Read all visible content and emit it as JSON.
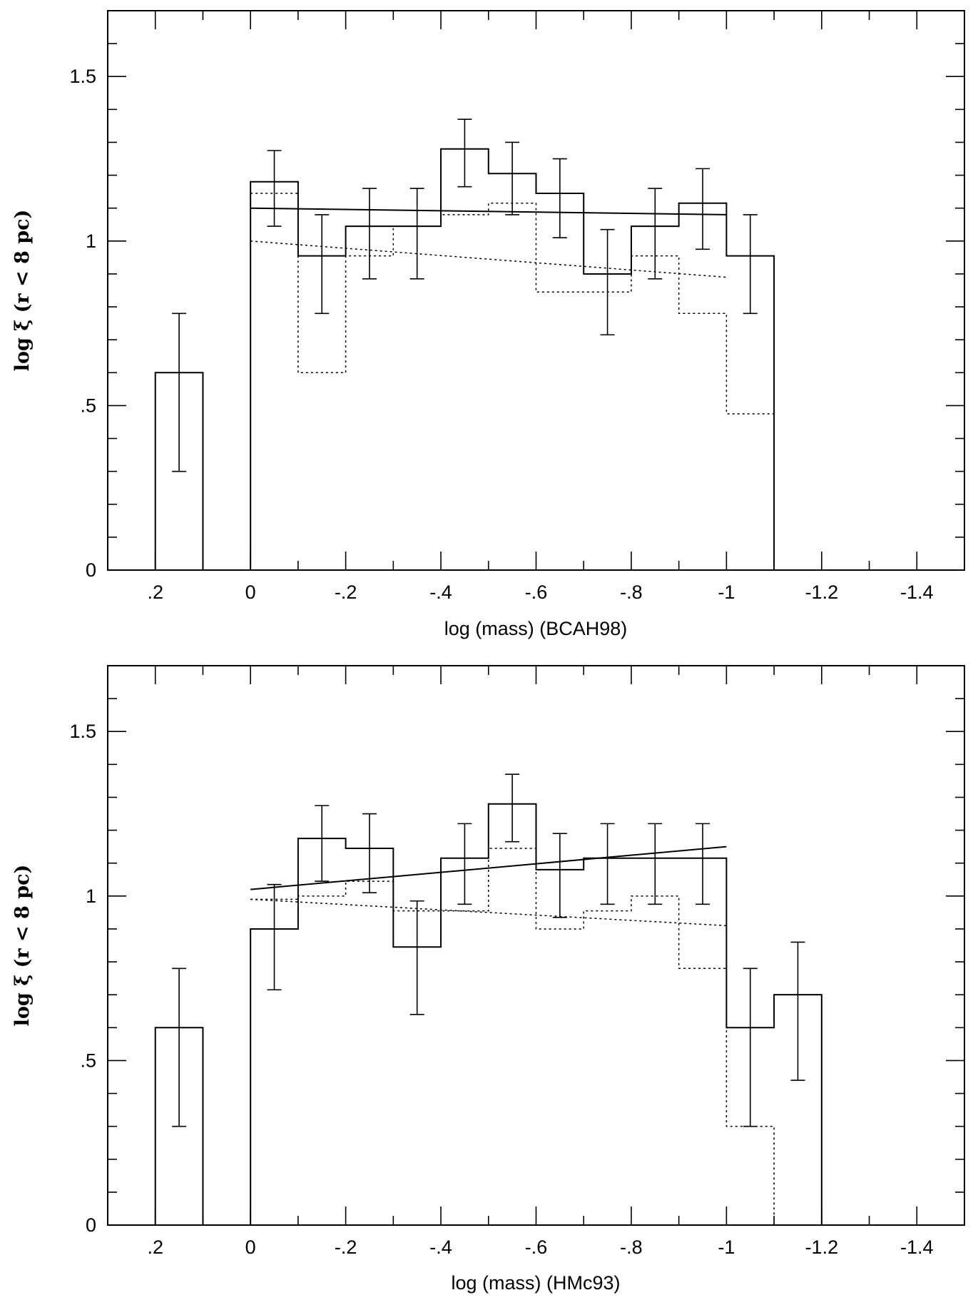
{
  "chart_data": [
    {
      "type": "histogram",
      "xlabel": "log (mass) (BCAH98)",
      "ylabel": "log ξ (r < 8 pc)",
      "xlim": [
        0.3,
        -1.5
      ],
      "ylim": [
        0,
        1.7
      ],
      "x_reversed": true,
      "x_ticks": [
        0.2,
        0,
        -0.2,
        -0.4,
        -0.6,
        -0.8,
        -1,
        -1.2,
        -1.4
      ],
      "x_tick_labels": [
        ".2",
        "0",
        "-.2",
        "-.4",
        "-.6",
        "-.8",
        "-1",
        "-1.2",
        "-1.4"
      ],
      "y_ticks": [
        0,
        0.5,
        1,
        1.5
      ],
      "y_tick_labels": [
        "0",
        ".5",
        "1",
        "1.5"
      ],
      "grid": false,
      "series": [
        {
          "style": "solid histogram with error bars",
          "bin_edges": [
            0.2,
            0.1,
            0,
            -0.1,
            -0.2,
            -0.3,
            -0.4,
            -0.5,
            -0.6,
            -0.7,
            -0.8,
            -0.9,
            -1.0,
            -1.1
          ],
          "values": [
            0.6,
            null,
            1.18,
            0.955,
            1.045,
            1.045,
            1.28,
            1.205,
            1.145,
            0.9,
            1.045,
            1.115,
            0.955
          ],
          "err_low": [
            0.3,
            null,
            1.045,
            0.78,
            0.885,
            0.885,
            1.165,
            1.08,
            1.01,
            0.715,
            0.885,
            0.975,
            0.78
          ],
          "err_high": [
            0.78,
            null,
            1.275,
            1.08,
            1.16,
            1.16,
            1.37,
            1.3,
            1.25,
            1.035,
            1.16,
            1.22,
            1.08
          ]
        },
        {
          "style": "dotted histogram",
          "bin_edges": [
            0,
            -0.1,
            -0.2,
            -0.3,
            -0.4,
            -0.5,
            -0.6,
            -0.7,
            -0.8,
            -0.9,
            -1.0,
            -1.1
          ],
          "values": [
            1.145,
            0.6,
            0.955,
            1.045,
            1.08,
            1.115,
            0.845,
            0.845,
            0.955,
            0.78,
            0.475
          ]
        },
        {
          "style": "solid fit line",
          "x": [
            0,
            -1.0
          ],
          "y": [
            1.1,
            1.08
          ]
        },
        {
          "style": "dotted fit line",
          "x": [
            0,
            -1.0
          ],
          "y": [
            1.0,
            0.89
          ]
        }
      ]
    },
    {
      "type": "histogram",
      "xlabel": "log (mass) (HMc93)",
      "ylabel": "log ξ (r < 8 pc)",
      "xlim": [
        0.3,
        -1.5
      ],
      "ylim": [
        0,
        1.7
      ],
      "x_reversed": true,
      "x_ticks": [
        0.2,
        0,
        -0.2,
        -0.4,
        -0.6,
        -0.8,
        -1,
        -1.2,
        -1.4
      ],
      "x_tick_labels": [
        ".2",
        "0",
        "-.2",
        "-.4",
        "-.6",
        "-.8",
        "-1",
        "-1.2",
        "-1.4"
      ],
      "y_ticks": [
        0,
        0.5,
        1,
        1.5
      ],
      "y_tick_labels": [
        "0",
        ".5",
        "1",
        "1.5"
      ],
      "grid": false,
      "series": [
        {
          "style": "solid histogram with error bars",
          "bin_edges": [
            0.2,
            0.1,
            0,
            -0.1,
            -0.2,
            -0.3,
            -0.4,
            -0.5,
            -0.6,
            -0.7,
            -0.8,
            -0.9,
            -1.0,
            -1.1,
            -1.2
          ],
          "values": [
            0.6,
            null,
            0.9,
            1.175,
            1.145,
            0.845,
            1.115,
            1.28,
            1.08,
            1.115,
            1.115,
            1.115,
            0.6,
            0.7
          ],
          "err_low": [
            0.3,
            null,
            0.715,
            1.045,
            1.01,
            0.64,
            0.975,
            1.165,
            0.935,
            0.975,
            0.975,
            0.975,
            0.3,
            0.44
          ],
          "err_high": [
            0.78,
            null,
            1.035,
            1.275,
            1.25,
            0.985,
            1.22,
            1.37,
            1.19,
            1.22,
            1.22,
            1.22,
            0.78,
            0.86
          ]
        },
        {
          "style": "dotted histogram",
          "bin_edges": [
            0,
            -0.1,
            -0.2,
            -0.3,
            -0.4,
            -0.5,
            -0.6,
            -0.7,
            -0.8,
            -0.9,
            -1.0,
            -1.1
          ],
          "values": [
            0.99,
            1.0,
            1.045,
            0.955,
            0.955,
            1.145,
            0.9,
            0.955,
            1.0,
            0.78,
            0.3
          ],
          "drop_to_zero_at_end": true
        },
        {
          "style": "solid fit line",
          "x": [
            0,
            -1.0
          ],
          "y": [
            1.02,
            1.15
          ]
        },
        {
          "style": "dotted fit line",
          "x": [
            0,
            -1.0
          ],
          "y": [
            0.99,
            0.91
          ]
        }
      ]
    }
  ]
}
